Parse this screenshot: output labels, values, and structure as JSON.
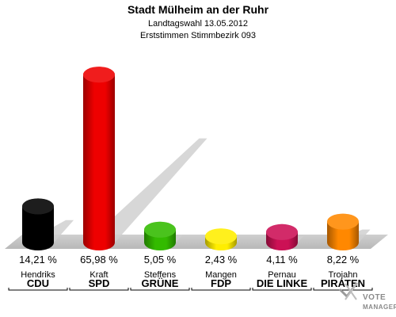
{
  "header": {
    "title": "Stadt Mülheim an der Ruhr",
    "subtitle1": "Landtagswahl 13.05.2012",
    "subtitle2": "Erststimmen Stimmbezirk 093"
  },
  "logo": {
    "line1": "VOTE",
    "line2": "MANAGER"
  },
  "chart_data": {
    "type": "bar",
    "title": "Stadt Mülheim an der Ruhr",
    "subtitle": "Landtagswahl 13.05.2012 — Erststimmen Stimmbezirk 093",
    "categories": [
      "CDU",
      "SPD",
      "GRÜNE",
      "FDP",
      "DIE LINKE",
      "PIRATEN"
    ],
    "candidates": [
      "Hendriks",
      "Kraft",
      "Steffens",
      "Mangen",
      "Pernau",
      "Trojahn"
    ],
    "values": [
      14.21,
      65.98,
      5.05,
      2.43,
      4.11,
      8.22
    ],
    "value_labels": [
      "14,21 %",
      "65,98 %",
      "5,05 %",
      "2,43 %",
      "4,11 %",
      "8,22 %"
    ],
    "colors": [
      "#000000",
      "#ee0000",
      "#33bb00",
      "#ffee00",
      "#cc1155",
      "#ff8800"
    ],
    "xlabel": "",
    "ylabel": "",
    "ylim": [
      0,
      70
    ],
    "grid": false
  }
}
